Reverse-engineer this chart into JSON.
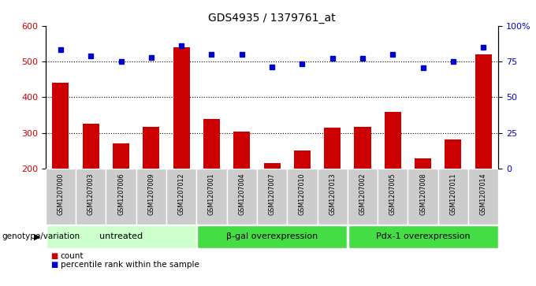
{
  "title": "GDS4935 / 1379761_at",
  "samples": [
    "GSM1207000",
    "GSM1207003",
    "GSM1207006",
    "GSM1207009",
    "GSM1207012",
    "GSM1207001",
    "GSM1207004",
    "GSM1207007",
    "GSM1207010",
    "GSM1207013",
    "GSM1207002",
    "GSM1207005",
    "GSM1207008",
    "GSM1207011",
    "GSM1207014"
  ],
  "bar_values": [
    440,
    325,
    270,
    318,
    540,
    340,
    305,
    215,
    252,
    315,
    318,
    360,
    228,
    282,
    520
  ],
  "percentile_values": [
    533,
    515,
    500,
    512,
    545,
    520,
    520,
    485,
    493,
    510,
    508,
    520,
    483,
    500,
    540
  ],
  "bar_color": "#cc0000",
  "dot_color": "#0000cc",
  "ylim_left": [
    200,
    600
  ],
  "ylim_right": [
    0,
    100
  ],
  "yticks_left": [
    200,
    300,
    400,
    500,
    600
  ],
  "yticks_right": [
    0,
    25,
    50,
    75,
    100
  ],
  "ytick_labels_right": [
    "0",
    "25",
    "50",
    "75",
    "100%"
  ],
  "grid_lines": [
    300,
    400,
    500
  ],
  "groups": [
    {
      "label": "untreated",
      "start": 0,
      "end": 5,
      "color": "#ccffcc"
    },
    {
      "label": "β-gal overexpression",
      "start": 5,
      "end": 10,
      "color": "#44dd44"
    },
    {
      "label": "Pdx-1 overexpression",
      "start": 10,
      "end": 15,
      "color": "#44dd44"
    }
  ],
  "xlabel_group": "genotype/variation",
  "legend_count": "count",
  "legend_percentile": "percentile rank within the sample",
  "bar_width": 0.55,
  "sample_box_color": "#cccccc",
  "fig_width": 6.8,
  "fig_height": 3.63,
  "fig_dpi": 100
}
